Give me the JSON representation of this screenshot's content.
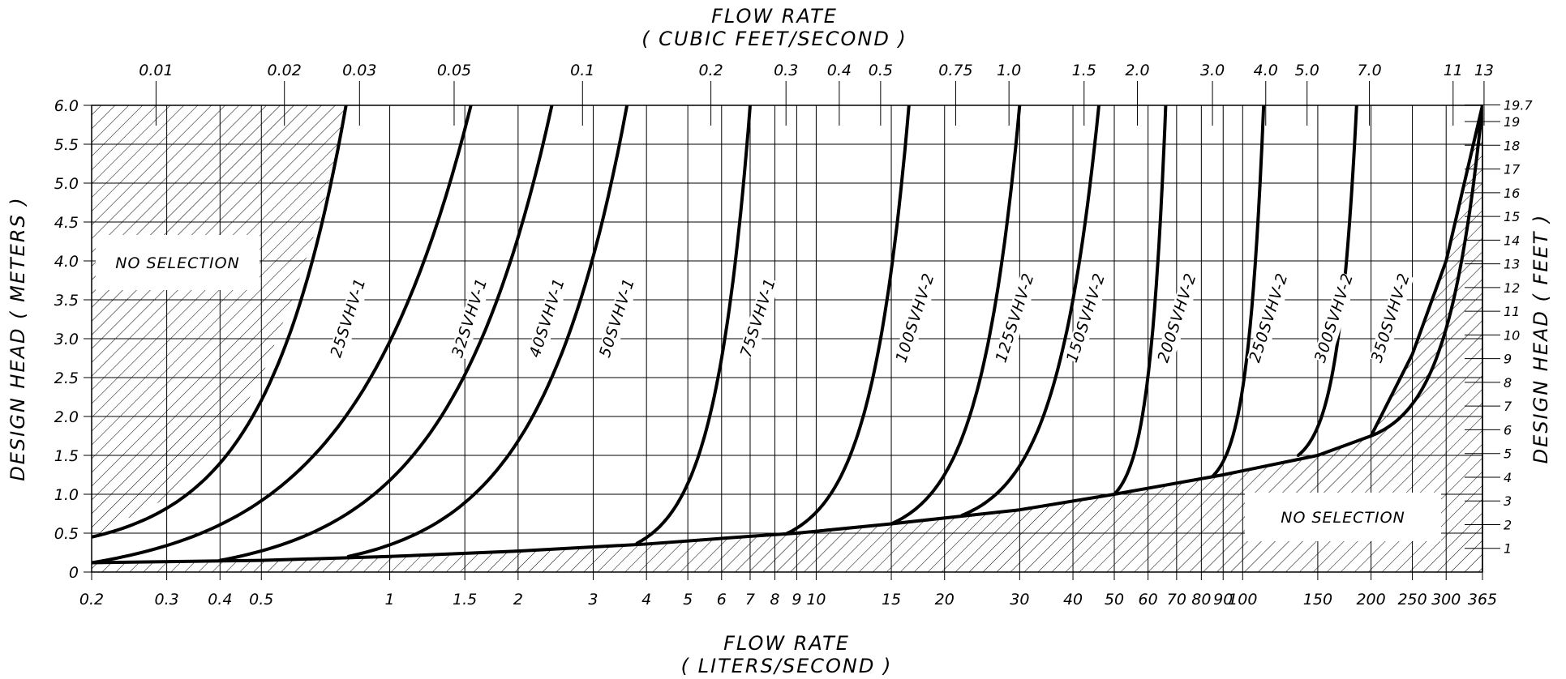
{
  "chart_data": {
    "type": "line",
    "title_top": "FLOW RATE",
    "subtitle_top": "( CUBIC FEET/SECOND )",
    "xlabel": "FLOW RATE",
    "xlabel_units": "( LITERS/SECOND )",
    "ylabel_left": "DESIGN HEAD ( METERS )",
    "ylabel_right": "DESIGN HEAD ( FEET )",
    "x_scale": "log",
    "xlim": [
      0.2,
      365
    ],
    "ylim": [
      0,
      6.0
    ],
    "grid": true,
    "bottom_ticks": [
      0.2,
      0.3,
      0.4,
      0.5,
      1,
      1.5,
      2,
      3,
      4,
      5,
      6,
      7,
      8,
      9,
      10,
      15,
      20,
      30,
      40,
      50,
      60,
      70,
      80,
      90,
      100,
      150,
      200,
      250,
      300,
      365
    ],
    "bottom_tick_labels": [
      "0.2",
      "0.3",
      "0.4",
      "0.5",
      "1",
      "1.5",
      "2",
      "3",
      "4",
      "5",
      "6",
      "7",
      "8",
      "9",
      "10",
      "15",
      "20",
      "30",
      "40",
      "50",
      "60",
      "70",
      "80",
      "90",
      "100",
      "150",
      "200",
      "250",
      "300",
      "365"
    ],
    "top_ticks_cfs": [
      0.01,
      0.02,
      0.03,
      0.05,
      0.1,
      0.2,
      0.3,
      0.4,
      0.5,
      0.75,
      1.0,
      1.5,
      2.0,
      3.0,
      4.0,
      5.0,
      7.0,
      11,
      13
    ],
    "top_tick_labels": [
      "0.01",
      "0.02",
      "0.03",
      "0.05",
      "0.1",
      "0.2",
      "0.3",
      "0.4",
      "0.5",
      "0.75",
      "1.0",
      "1.5",
      "2.0",
      "3.0",
      "4.0",
      "5.0",
      "7.0",
      "11",
      "13"
    ],
    "left_ticks_m": [
      0,
      0.5,
      1.0,
      1.5,
      2.0,
      2.5,
      3.0,
      3.5,
      4.0,
      4.5,
      5.0,
      5.5,
      6.0
    ],
    "left_tick_labels": [
      "0",
      "0.5",
      "1.0",
      "1.5",
      "2.0",
      "2.5",
      "3.0",
      "3.5",
      "4.0",
      "4.5",
      "5.0",
      "5.5",
      "6.0"
    ],
    "right_ticks_ft": [
      1,
      2,
      3,
      4,
      5,
      6,
      7,
      8,
      9,
      10,
      11,
      12,
      13,
      14,
      15,
      16,
      17,
      18,
      19,
      19.7
    ],
    "right_tick_labels": [
      "1",
      "2",
      "3",
      "4",
      "5",
      "6",
      "7",
      "8",
      "9",
      "10",
      "11",
      "12",
      "13",
      "14",
      "15",
      "16",
      "17",
      "18",
      "19",
      "19.7"
    ],
    "regions": [
      {
        "label": "NO SELECTION",
        "position": "upper-left"
      },
      {
        "label": "NO SELECTION",
        "position": "lower-right"
      }
    ],
    "boundary_lower": [
      [
        0.2,
        0.12
      ],
      [
        0.5,
        0.15
      ],
      [
        1,
        0.2
      ],
      [
        2,
        0.27
      ],
      [
        4,
        0.36
      ],
      [
        7,
        0.46
      ],
      [
        9,
        0.5
      ],
      [
        15,
        0.62
      ],
      [
        30,
        0.8
      ],
      [
        50,
        1.0
      ],
      [
        90,
        1.25
      ],
      [
        150,
        1.5
      ],
      [
        200,
        1.75
      ],
      [
        250,
        2.8
      ],
      [
        300,
        4.0
      ],
      [
        365,
        6.0
      ]
    ],
    "boundary_upper": [
      [
        0.2,
        0.45
      ],
      [
        0.3,
        0.95
      ],
      [
        0.4,
        1.6
      ],
      [
        0.5,
        2.5
      ],
      [
        0.6,
        3.6
      ],
      [
        0.7,
        4.7
      ],
      [
        0.79,
        6.0
      ]
    ],
    "series": [
      {
        "name": "25SVHV-1",
        "start": [
          0.2,
          0.45
        ],
        "end": [
          0.79,
          6.0
        ],
        "label_pos": [
          0.82,
          3.25
        ]
      },
      {
        "name": "32SVHV-1",
        "start": [
          0.2,
          0.12
        ],
        "end": [
          1.55,
          6.0
        ],
        "label_pos": [
          1.58,
          3.25
        ]
      },
      {
        "name": "40SVHV-1",
        "start": [
          0.4,
          0.15
        ],
        "end": [
          2.4,
          6.0
        ],
        "label_pos": [
          2.4,
          3.25
        ]
      },
      {
        "name": "50SVHV-1",
        "start": [
          0.8,
          0.2
        ],
        "end": [
          3.6,
          6.0
        ],
        "label_pos": [
          3.5,
          3.25
        ]
      },
      {
        "name": "75SVHV-1",
        "start": [
          3.8,
          0.37
        ],
        "end": [
          7.0,
          6.0
        ],
        "label_pos": [
          7.5,
          3.25
        ]
      },
      {
        "name": "100SVHV-2",
        "start": [
          8.5,
          0.49
        ],
        "end": [
          16.5,
          6.0
        ],
        "label_pos": [
          17.5,
          3.25
        ]
      },
      {
        "name": "125SVHV-2",
        "start": [
          15,
          0.62
        ],
        "end": [
          30,
          6.0
        ],
        "label_pos": [
          30,
          3.25
        ]
      },
      {
        "name": "150SVHV-2",
        "start": [
          22,
          0.73
        ],
        "end": [
          46,
          6.0
        ],
        "label_pos": [
          44,
          3.25
        ]
      },
      {
        "name": "200SVHV-2",
        "start": [
          50,
          1.0
        ],
        "end": [
          66,
          6.0
        ],
        "label_pos": [
          72,
          3.25
        ]
      },
      {
        "name": "250SVHV-2",
        "start": [
          85,
          1.23
        ],
        "end": [
          112,
          6.0
        ],
        "label_pos": [
          118,
          3.25
        ]
      },
      {
        "name": "300SVHV-2",
        "start": [
          135,
          1.5
        ],
        "end": [
          185,
          6.0
        ],
        "label_pos": [
          168,
          3.25
        ]
      },
      {
        "name": "350SVHV-2",
        "start": [
          200,
          1.75
        ],
        "end": [
          365,
          6.0
        ],
        "label_pos": [
          228,
          3.25
        ]
      }
    ]
  }
}
